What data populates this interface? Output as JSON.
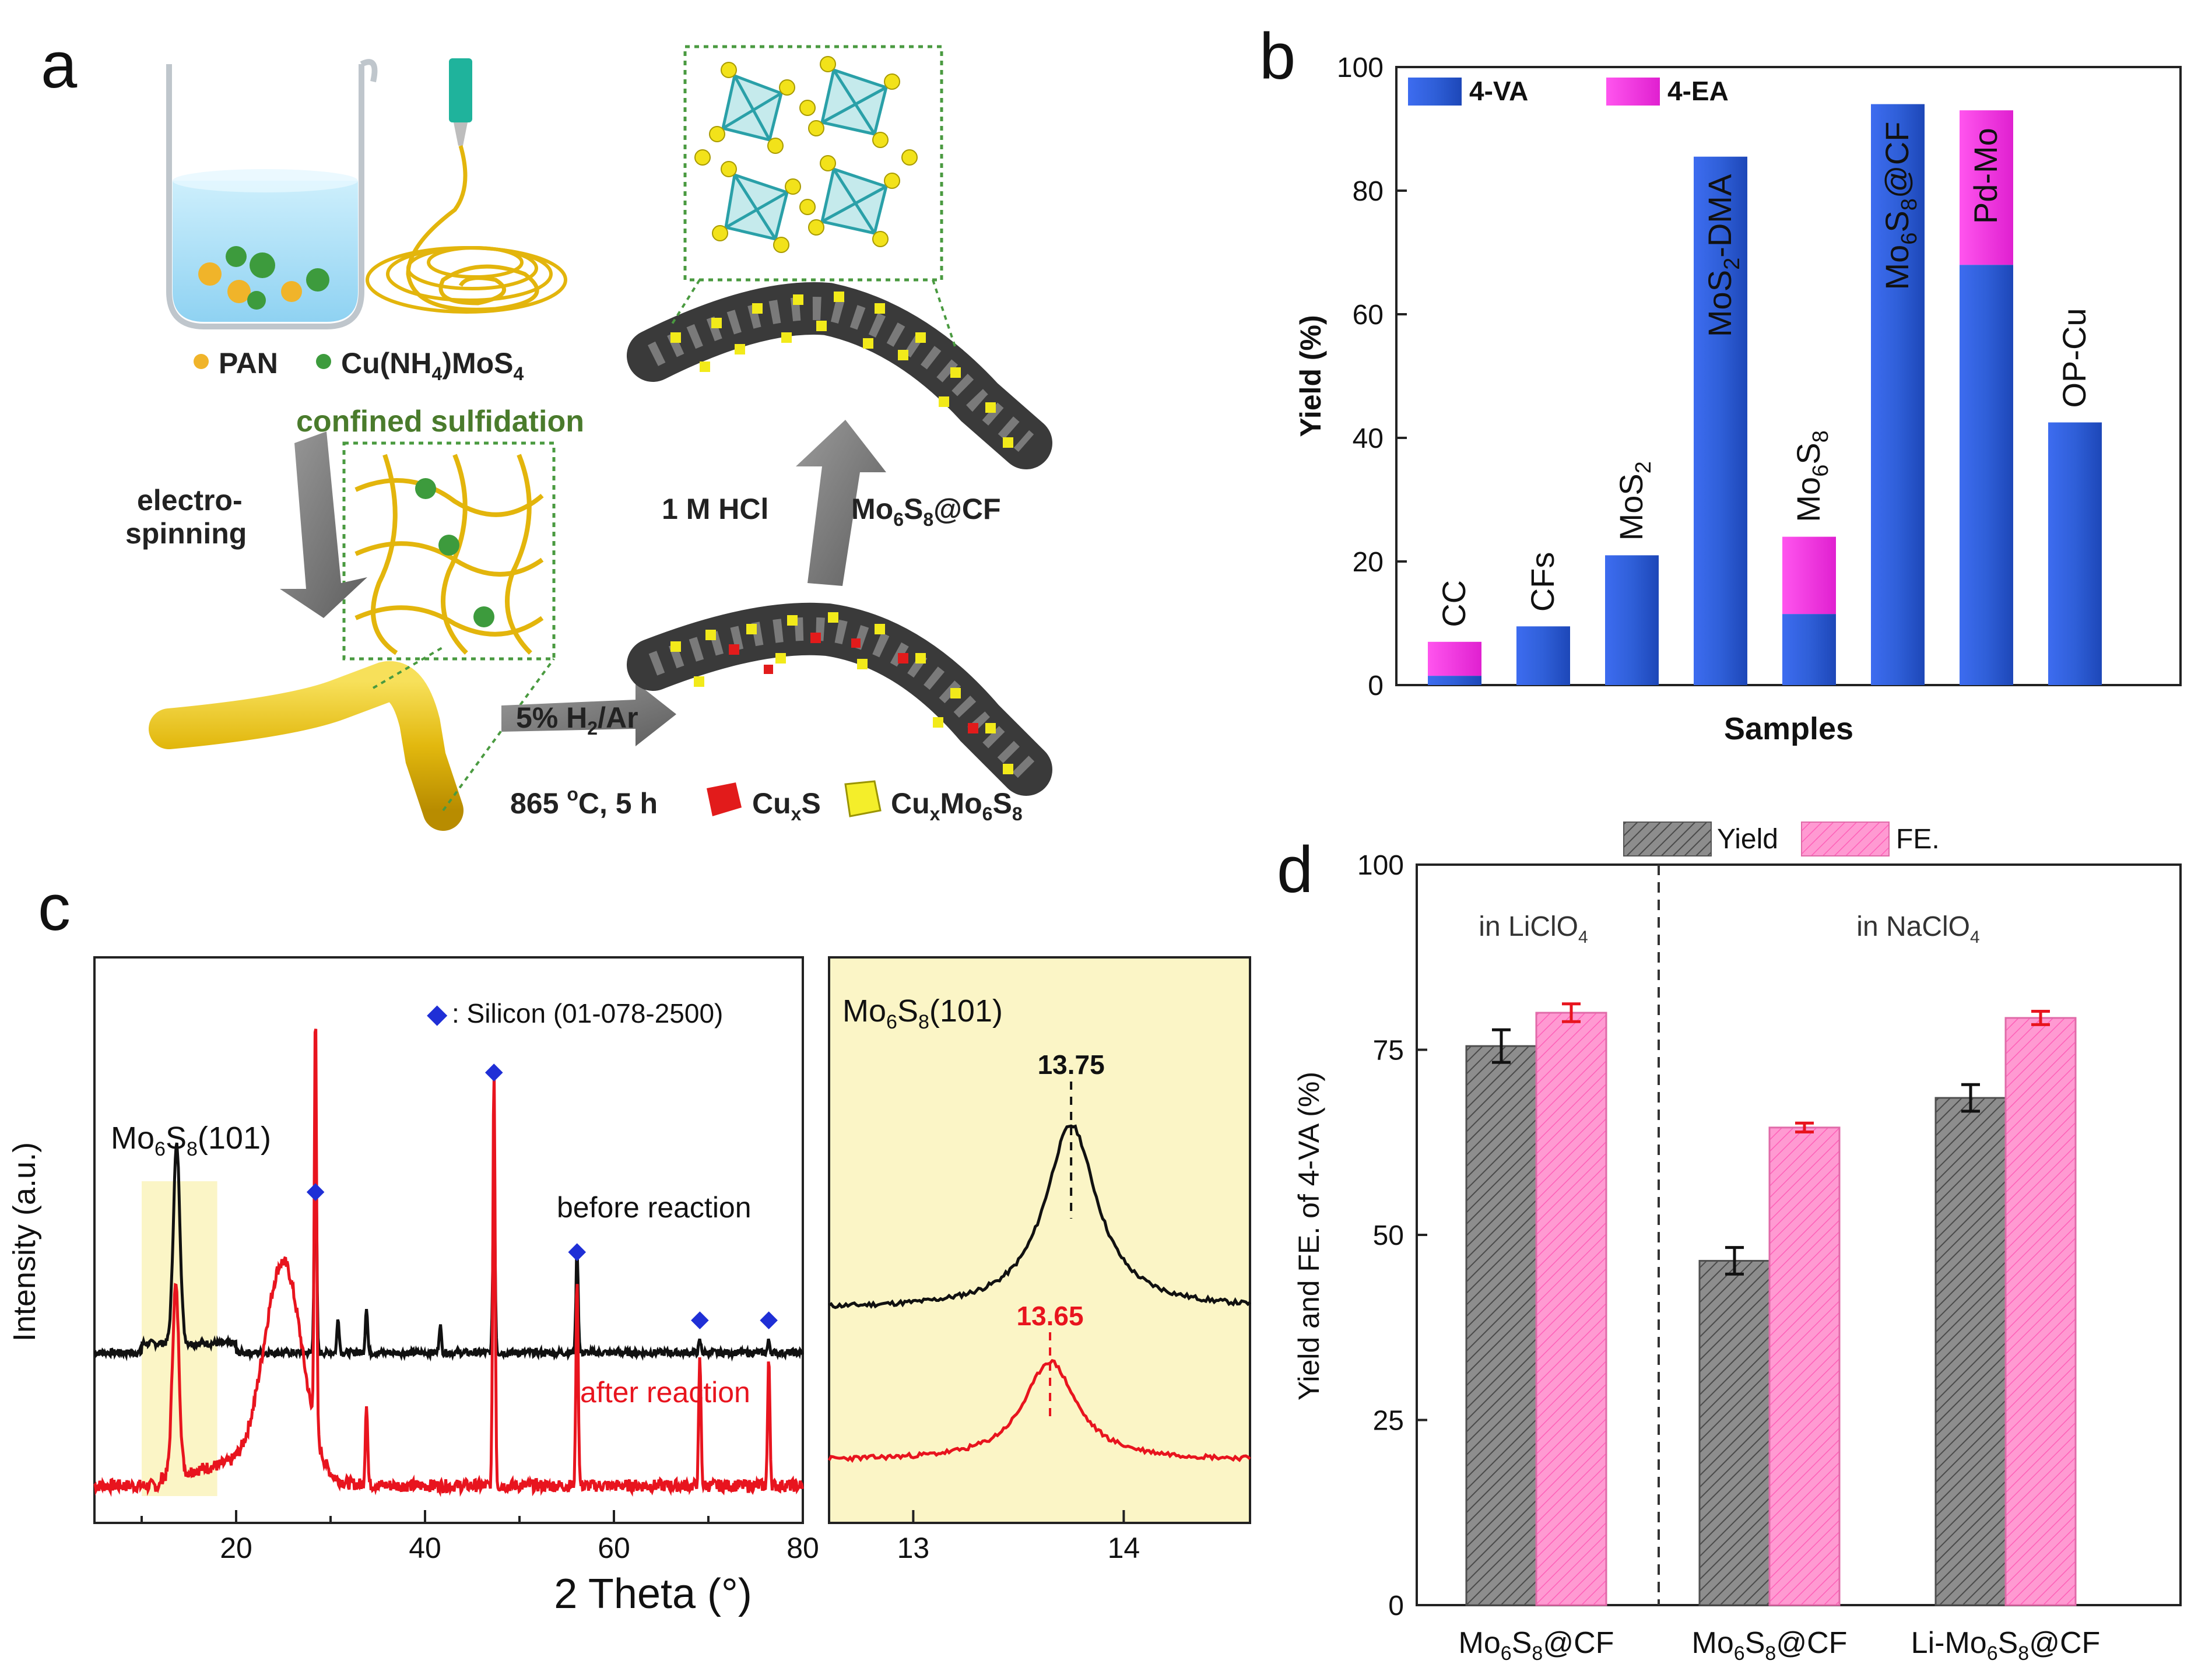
{
  "colors": {
    "blue": "#2f5fd8",
    "magenta": "#ff33e0",
    "grey": "#8a8a8a",
    "pink": "#ff9ad2",
    "black_line": "#111111",
    "red_line": "#e8141e",
    "silicon_marker": "#1f2fd6",
    "highlight": "#fbf5c6",
    "gold": "#e3b50c",
    "green_text": "#4a7b2c"
  },
  "panel_a": {
    "label": "a",
    "legend_pan": "PAN",
    "legend_cu_prefix": "Cu(NH",
    "legend_cu_sub1": "4",
    "legend_cu_mid": ")MoS",
    "legend_cu_sub2": "4",
    "confined": "confined sulfidation",
    "electro_1": "electro-",
    "electro_2": "spinning",
    "h2_prefix": "5% H",
    "h2_sub": "2",
    "h2_suffix": "/Ar",
    "temp_prefix": "865 ",
    "temp_sup": "o",
    "temp_suffix": "C, 5 h",
    "cuxs_prefix": "Cu",
    "cuxs_sub": "x",
    "cuxs_suffix": "S",
    "cuxmo_prefix": "Cu",
    "cuxmo_sub1": "x",
    "cuxmo_mid": "Mo",
    "cuxmo_sub2": "6",
    "cuxmo_s": "S",
    "cuxmo_sub3": "8",
    "hcl": "1 M HCl",
    "product_prefix": "Mo",
    "product_sub1": "6",
    "product_mid": "S",
    "product_sub2": "8",
    "product_suffix": "@CF"
  },
  "chart_data": [
    {
      "panel": "b",
      "type": "bar",
      "stacked": true,
      "title": "",
      "xlabel": "Samples",
      "ylabel": "Yield (%)",
      "ylim": [
        0,
        100
      ],
      "yticks": [
        "0",
        "20",
        "40",
        "60",
        "80",
        "100"
      ],
      "legend_position": "top-left",
      "categories": [
        "CC",
        "CFs",
        "MoS2",
        "MoS2-DMA",
        "Mo6S8",
        "Mo6S8@CF",
        "Pd-Mo",
        "OP-Cu"
      ],
      "series": [
        {
          "name": "4-VA",
          "values": [
            1.5,
            9.5,
            21,
            85.5,
            11.5,
            94,
            68,
            42.5
          ]
        },
        {
          "name": "4-EA",
          "values": [
            5.5,
            0,
            0,
            0,
            12.5,
            0,
            25,
            0
          ]
        }
      ]
    },
    {
      "panel": "c",
      "type": "line",
      "title": "",
      "xlabel": "2 Theta (°)",
      "ylabel": "Intensity (a.u.)",
      "xlim": [
        5,
        80
      ],
      "xticks": [
        "20",
        "40",
        "60",
        "80"
      ],
      "series": [
        {
          "name": "before reaction",
          "peaks_2theta": [
            13.7,
            28.4,
            30.8,
            33.8,
            41.6,
            47.3,
            56.1,
            69.1,
            76.4
          ],
          "peak_heights": [
            0.85,
            1.0,
            0.15,
            0.2,
            0.12,
            0.72,
            0.45,
            0.05,
            0.05
          ]
        },
        {
          "name": "after reaction",
          "peaks_2theta": [
            13.6,
            25.0,
            28.4,
            33.8,
            47.3,
            56.1,
            69.1,
            76.4
          ],
          "peak_heights": [
            0.45,
            0.5,
            1.0,
            0.2,
            1.0,
            0.5,
            0.3,
            0.3
          ]
        }
      ],
      "highlight_region": [
        10,
        18
      ],
      "highlight_label_prefix": "Mo",
      "highlight_label_sub1": "6",
      "highlight_label_mid": "S",
      "highlight_label_sub2": "8",
      "highlight_label_suffix": "(101)",
      "legend_marker": "◆",
      "legend_text": ": Silicon (01-078-2500)",
      "silicon_peaks": [
        28.4,
        47.3,
        56.1,
        69.1,
        76.4
      ],
      "label_before": "before reaction",
      "label_after": "after reaction"
    },
    {
      "panel": "c-zoom",
      "type": "line",
      "xlim": [
        12.6,
        14.6
      ],
      "xticks": [
        "13",
        "14"
      ],
      "title_prefix": "Mo",
      "title_sub1": "6",
      "title_mid": "S",
      "title_sub2": "8",
      "title_suffix": "(101)",
      "series": [
        {
          "name": "before reaction",
          "peak_2theta": 13.75,
          "peak_label": "13.75"
        },
        {
          "name": "after reaction",
          "peak_2theta": 13.65,
          "peak_label": "13.65"
        }
      ]
    },
    {
      "panel": "d",
      "type": "bar",
      "title": "",
      "ylabel": "Yield and FE. of 4-VA (%)",
      "ylim": [
        0,
        100
      ],
      "yticks": [
        "0",
        "25",
        "50",
        "75",
        "100"
      ],
      "legend_position": "top-center",
      "group_labels": [
        "in LiClO",
        "in NaClO"
      ],
      "group_label_sub": "4",
      "categories": [
        {
          "prefix": "Mo",
          "sub1": "6",
          "mid": "S",
          "sub2": "8",
          "suffix": "@CF"
        },
        {
          "prefix": "Mo",
          "sub1": "6",
          "mid": "S",
          "sub2": "8",
          "suffix": "@CF"
        },
        {
          "prefix": "Li-Mo",
          "sub1": "6",
          "mid": "S",
          "sub2": "8",
          "suffix": "@CF"
        }
      ],
      "series": [
        {
          "name": "Yield",
          "values": [
            75.5,
            46.5,
            68.5
          ],
          "errors": [
            2.2,
            1.8,
            1.8
          ]
        },
        {
          "name": "FE.",
          "values": [
            80,
            64.5,
            79.3
          ],
          "errors": [
            1.2,
            0.6,
            0.9
          ]
        }
      ]
    }
  ],
  "panel_labels": {
    "b": "b",
    "c": "c",
    "d": "d"
  }
}
